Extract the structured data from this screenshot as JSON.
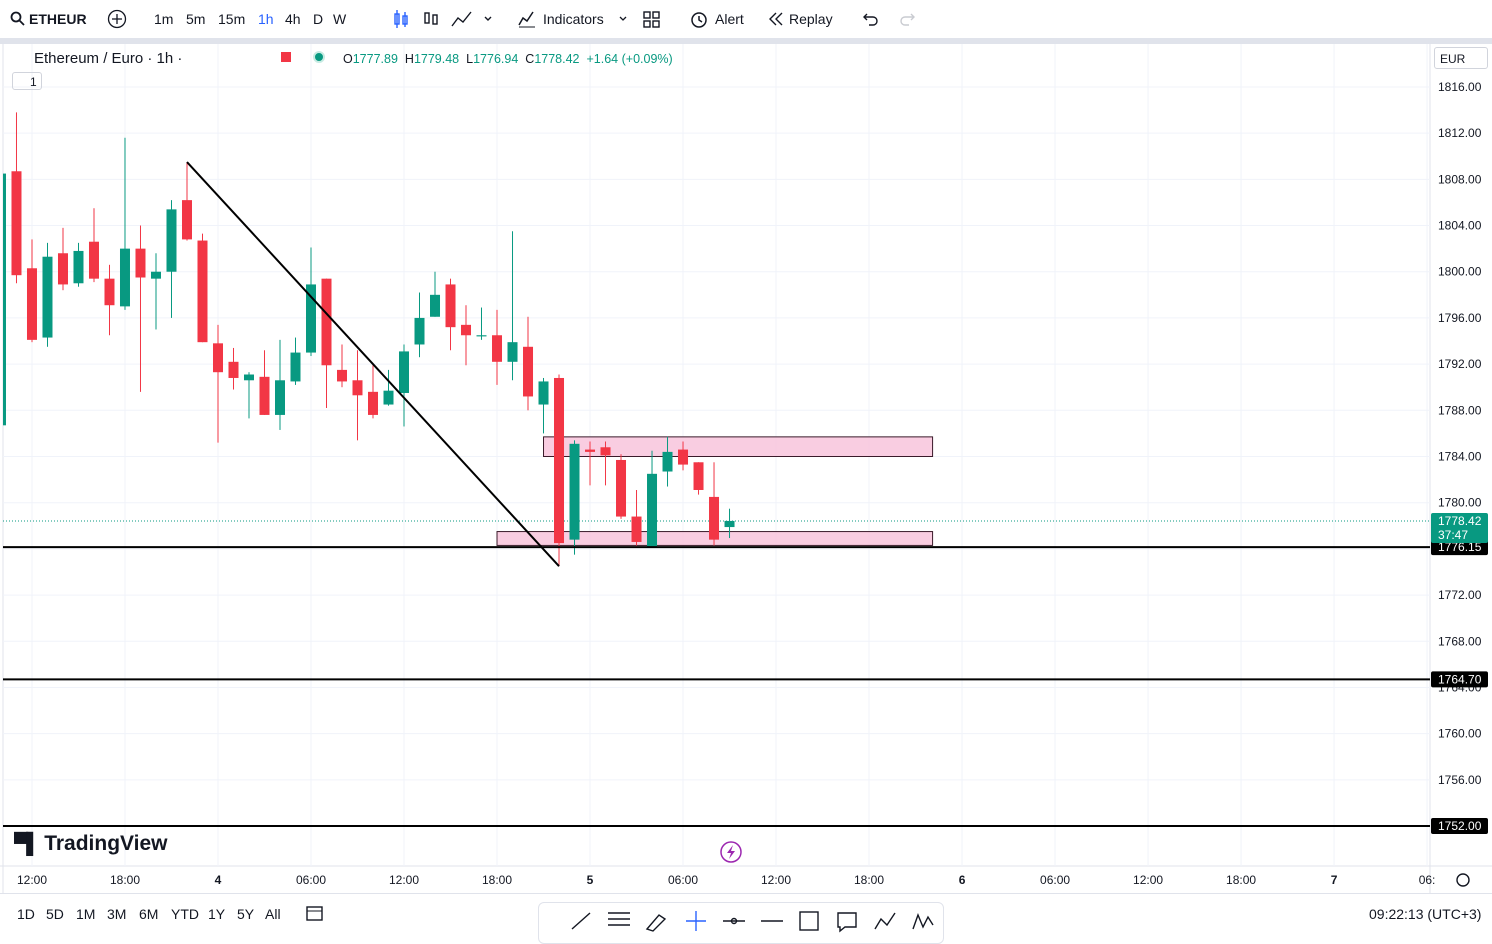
{
  "toolbar": {
    "symbol": "ETHEUR",
    "intervals": [
      "1m",
      "5m",
      "15m",
      "1h",
      "4h",
      "D",
      "W"
    ],
    "indicators": "Indicators",
    "alert": "Alert",
    "replay": "Replay"
  },
  "legend": {
    "name": "Ethereum / Euro · 1h ·",
    "keys": [
      "O",
      "H",
      "L",
      "C"
    ],
    "change": "+1.64 (+0.09%)",
    "collapse": "1"
  },
  "currency": "EUR",
  "chart_data": {
    "type": "candlestick",
    "x": [
      10,
      11,
      12,
      13,
      14,
      15,
      16,
      17,
      18,
      19,
      20,
      21,
      22,
      23,
      24,
      25,
      26,
      27,
      28,
      29,
      30,
      31,
      32,
      33,
      34,
      35,
      36,
      37,
      38,
      39,
      40,
      41,
      42,
      43,
      44,
      45,
      46,
      47,
      48,
      49,
      50,
      51,
      52,
      53,
      54,
      55,
      56,
      57
    ],
    "open": [
      1786.7,
      1808.7,
      1800.3,
      1794.3,
      1801.6,
      1799.0,
      1802.6,
      1799.4,
      1797.0,
      1802.0,
      1799.4,
      1800.0,
      1806.2,
      1802.7,
      1793.8,
      1792.2,
      1790.6,
      1790.9,
      1787.6,
      1790.5,
      1793.0,
      1799.4,
      1791.5,
      1790.6,
      1789.6,
      1788.5,
      1789.5,
      1793.7,
      1796.1,
      1798.9,
      1795.4,
      1794.4,
      1794.5,
      1792.2,
      1793.5,
      1788.5,
      1790.8,
      1776.8,
      1784.6,
      1784.8,
      1783.7,
      1778.8,
      1776.1,
      1782.7,
      1784.6,
      1783.5,
      1780.5,
      1777.89
    ],
    "high": [
      1808.5,
      1813.8,
      1802.8,
      1802.5,
      1803.8,
      1802.5,
      1805.5,
      1800.6,
      1811.6,
      1804.0,
      1801.6,
      1806.2,
      1809.5,
      1803.3,
      1795.4,
      1793.4,
      1791.3,
      1793.2,
      1794.1,
      1794.3,
      1802.1,
      1799.4,
      1793.7,
      1793.2,
      1792.1,
      1791.5,
      1793.7,
      1798.2,
      1800.0,
      1799.4,
      1797.1,
      1796.9,
      1796.7,
      1803.5,
      1796.1,
      1790.8,
      1791.1,
      1785.4,
      1785.3,
      1785.3,
      1784.2,
      1781.1,
      1784.5,
      1785.7,
      1785.3,
      1783.5,
      1783.5,
      1779.48
    ],
    "low": [
      1786.7,
      1799.0,
      1793.9,
      1793.5,
      1798.4,
      1798.7,
      1799.1,
      1794.5,
      1796.7,
      1789.6,
      1795.0,
      1796.0,
      1802.7,
      1793.9,
      1785.2,
      1789.8,
      1787.3,
      1787.6,
      1786.3,
      1790.2,
      1792.7,
      1788.2,
      1790.0,
      1785.4,
      1787.3,
      1788.4,
      1786.6,
      1792.6,
      1796.1,
      1793.2,
      1791.9,
      1794.1,
      1790.2,
      1790.6,
      1788.0,
      1786.0,
      1774.5,
      1775.5,
      1781.5,
      1781.5,
      1778.6,
      1776.3,
      1776.1,
      1781.4,
      1782.8,
      1780.7,
      1776.3,
      1776.94
    ],
    "close": [
      1808.5,
      1799.7,
      1794.1,
      1801.3,
      1798.9,
      1801.8,
      1799.4,
      1797.1,
      1802.0,
      1799.5,
      1800.0,
      1805.4,
      1802.8,
      1793.9,
      1791.3,
      1790.8,
      1791.1,
      1787.6,
      1790.6,
      1793.0,
      1798.9,
      1791.9,
      1790.5,
      1789.3,
      1787.6,
      1789.7,
      1793.1,
      1796.0,
      1798.0,
      1795.2,
      1794.5,
      1794.5,
      1792.2,
      1793.9,
      1789.2,
      1790.5,
      1776.5,
      1785.1,
      1784.4,
      1784.1,
      1778.8,
      1776.6,
      1782.5,
      1784.4,
      1783.3,
      1781.1,
      1776.8,
      1778.42
    ],
    "up_color": "#089981",
    "down_color": "#f23645",
    "xlim": [
      10.13,
      102.19
    ],
    "xticks": [
      {
        "value": 12,
        "label": "12:00"
      },
      {
        "value": 18,
        "label": "18:00"
      },
      {
        "value": 24,
        "label": "4"
      },
      {
        "value": 30,
        "label": "06:00"
      },
      {
        "value": 36,
        "label": "12:00"
      },
      {
        "value": 42,
        "label": "18:00"
      },
      {
        "value": 48,
        "label": "5"
      },
      {
        "value": 54,
        "label": "06:00"
      },
      {
        "value": 60,
        "label": "12:00"
      },
      {
        "value": 66,
        "label": "18:00"
      },
      {
        "value": 72,
        "label": "6"
      },
      {
        "value": 78,
        "label": "06:00"
      },
      {
        "value": 84,
        "label": "12:00"
      },
      {
        "value": 90,
        "label": "18:00"
      },
      {
        "value": 96,
        "label": "7"
      },
      {
        "value": 102,
        "label": "06:"
      }
    ],
    "ylim": [
      1748.54,
      1819.72
    ],
    "yticks": [
      {
        "value": 1816,
        "label": "1816.00"
      },
      {
        "value": 1812,
        "label": "1812.00"
      },
      {
        "value": 1808,
        "label": "1808.00"
      },
      {
        "value": 1804,
        "label": "1804.00"
      },
      {
        "value": 1800,
        "label": "1800.00"
      },
      {
        "value": 1796,
        "label": "1796.00"
      },
      {
        "value": 1792,
        "label": "1792.00"
      },
      {
        "value": 1788,
        "label": "1788.00"
      },
      {
        "value": 1784,
        "label": "1784.00"
      },
      {
        "value": 1780,
        "label": "1780.00"
      },
      {
        "value": 1776,
        "label": "1776.00"
      },
      {
        "value": 1772,
        "label": "1772.00"
      },
      {
        "value": 1768,
        "label": "1768.00"
      },
      {
        "value": 1764,
        "label": "1764.00"
      },
      {
        "value": 1760,
        "label": "1760.00"
      },
      {
        "value": 1756,
        "label": "1756.00"
      },
      {
        "value": 1752,
        "label": "1752.00"
      }
    ],
    "grid": true,
    "last_price": {
      "value": 1778.42,
      "label": "1778.42",
      "countdown": "37:47"
    },
    "hlines": [
      {
        "value": 1776.15,
        "label": "1776.15"
      },
      {
        "value": 1764.7,
        "label": "1764.70"
      },
      {
        "value": 1752.0,
        "label": "1752.00"
      }
    ],
    "zones": [
      {
        "x": [
          45,
          70.1
        ],
        "y": [
          1784.0,
          1785.7
        ]
      },
      {
        "x": [
          42,
          70.1
        ],
        "y": [
          1776.3,
          1777.5
        ]
      }
    ],
    "trendline": {
      "x": [
        22,
        46
      ],
      "y": [
        1809.5,
        1774.5
      ]
    }
  },
  "logo": "TradingView",
  "ranges": [
    "1D",
    "5D",
    "1M",
    "3M",
    "6M",
    "YTD",
    "1Y",
    "5Y",
    "All"
  ],
  "clock": "09:22:13 (UTC+3)"
}
